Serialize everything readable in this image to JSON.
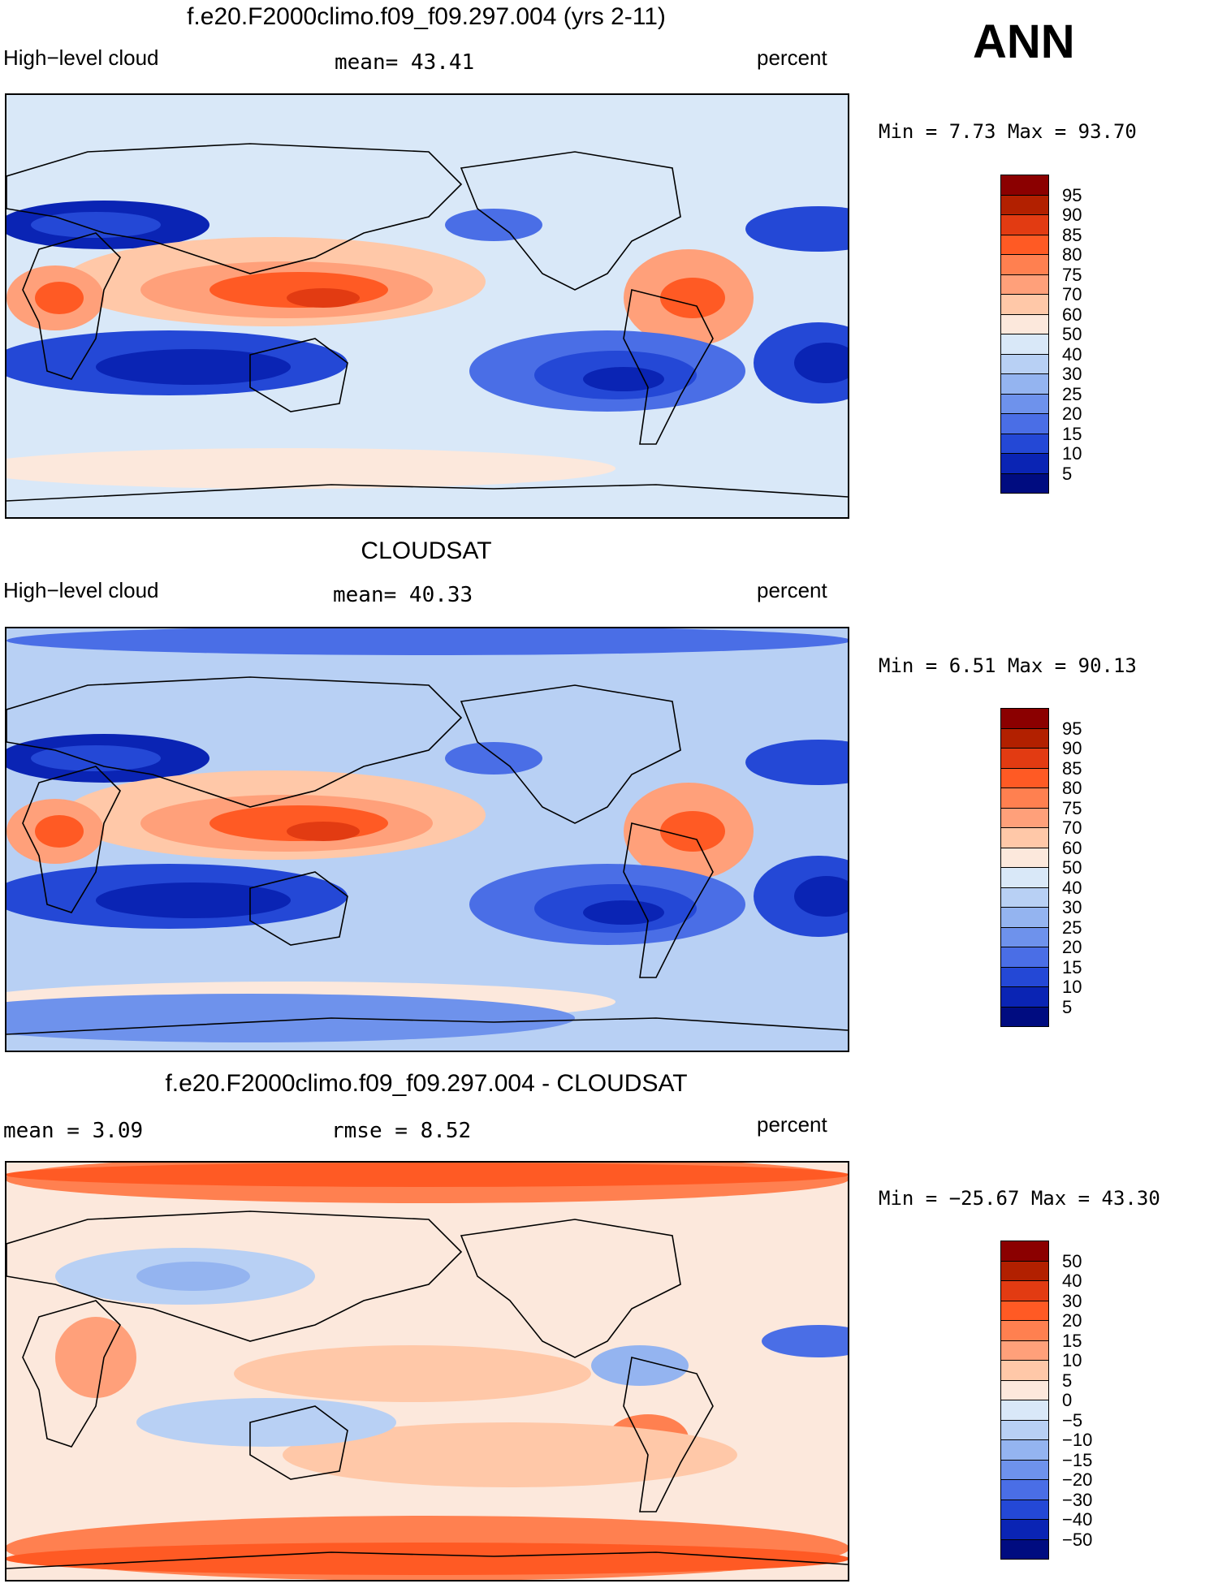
{
  "season": "ANN",
  "panels": [
    {
      "id": "model",
      "title": "f.e20.F2000climo.f09_f09.297.004 (yrs 2-11)",
      "left_label": "High−level cloud",
      "center_label": "mean=   43.41",
      "units": "percent",
      "minmax": "Min =     7.73  Max =    93.70",
      "levels": [
        "95",
        "90",
        "85",
        "80",
        "75",
        "70",
        "60",
        "50",
        "40",
        "30",
        "25",
        "20",
        "15",
        "10",
        "5"
      ],
      "colors": [
        "#8B0000",
        "#B22000",
        "#E23B12",
        "#FF5A24",
        "#FF8050",
        "#FFA07A",
        "#FFC8A8",
        "#FCE8DC",
        "#D9E8F8",
        "#B8D0F4",
        "#94B4F0",
        "#6E92EC",
        "#4A6EE6",
        "#2448D6",
        "#0A24B4",
        "#000C80"
      ],
      "ocean_color": "#D9E8F8"
    },
    {
      "id": "obs",
      "title": "CLOUDSAT",
      "left_label": "High−level cloud",
      "center_label": "mean=   40.33",
      "units": "percent",
      "minmax": "Min =     6.51  Max =    90.13",
      "levels": [
        "95",
        "90",
        "85",
        "80",
        "75",
        "70",
        "60",
        "50",
        "40",
        "30",
        "25",
        "20",
        "15",
        "10",
        "5"
      ],
      "colors": [
        "#8B0000",
        "#B22000",
        "#E23B12",
        "#FF5A24",
        "#FF8050",
        "#FFA07A",
        "#FFC8A8",
        "#FCE8DC",
        "#D9E8F8",
        "#B8D0F4",
        "#94B4F0",
        "#6E92EC",
        "#4A6EE6",
        "#2448D6",
        "#0A24B4",
        "#000C80"
      ],
      "ocean_color": "#B8D0F4"
    },
    {
      "id": "diff",
      "title": "f.e20.F2000climo.f09_f09.297.004 - CLOUDSAT",
      "left_label": "mean =     3.09",
      "center_label": "rmse =     8.52",
      "units": "percent",
      "minmax": "Min = −25.67  Max =    43.30",
      "levels": [
        "50",
        "40",
        "30",
        "20",
        "15",
        "10",
        "5",
        "0",
        "−5",
        "−10",
        "−15",
        "−20",
        "−30",
        "−40",
        "−50"
      ],
      "colors": [
        "#8B0000",
        "#B22000",
        "#E23B12",
        "#FF5A24",
        "#FF8050",
        "#FFA07A",
        "#FFC8A8",
        "#FCE8DC",
        "#D9E8F8",
        "#B8D0F4",
        "#94B4F0",
        "#6E92EC",
        "#4A6EE6",
        "#2448D6",
        "#0A24B4",
        "#000C80"
      ],
      "ocean_color": "#FCE8DC"
    }
  ]
}
